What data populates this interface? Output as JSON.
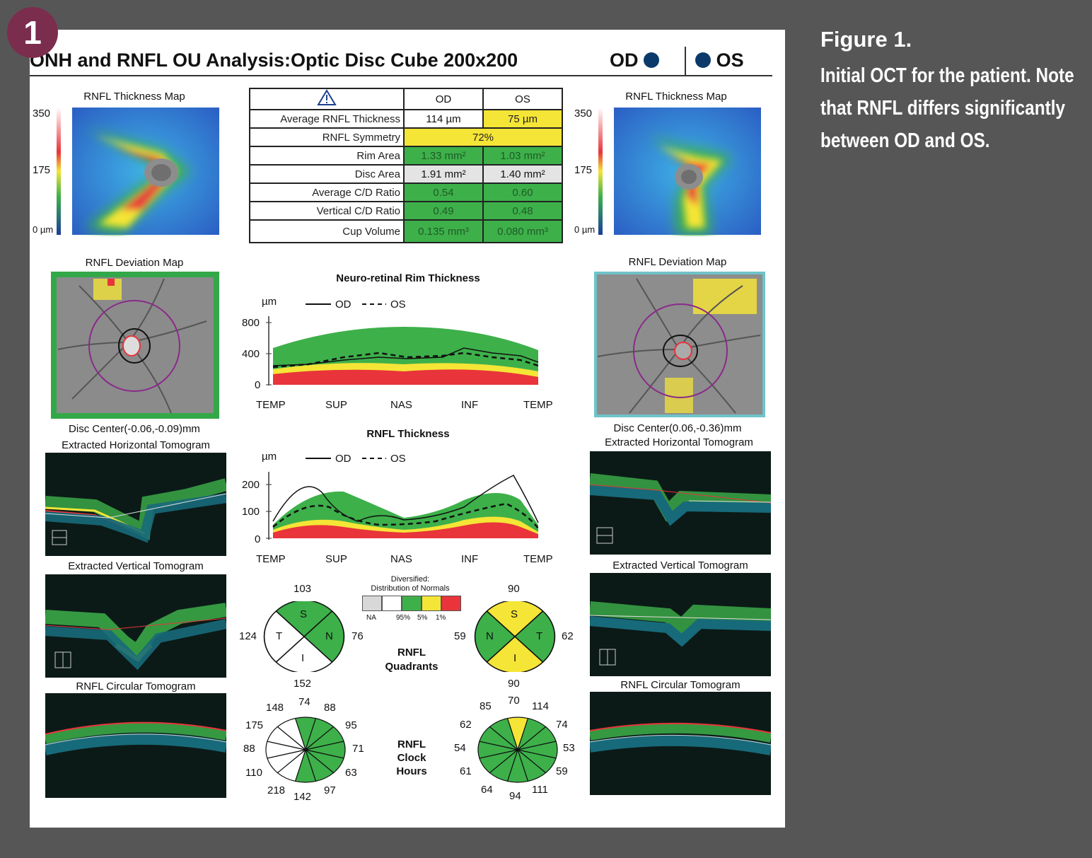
{
  "badge": "1",
  "caption": {
    "figure": "Figure 1.",
    "text": "Initial OCT for the patient. Note that RNFL differs significantly between OD and OS."
  },
  "report": {
    "title": "ONH and RNFL OU Analysis:Optic Disc Cube 200x200",
    "eye_od": "OD",
    "eye_os": "OS",
    "thickness_map": {
      "title": "RNFL Thickness Map",
      "scale_max": "350",
      "scale_mid": "175",
      "scale_min": "0 µm"
    },
    "deviation_map_title": "RNFL Deviation Map",
    "disc_center_od": "Disc Center(-0.06,-0.09)mm",
    "disc_center_os": "Disc Center(0.06,-0.36)mm",
    "h_tomo_title": "Extracted Horizontal Tomogram",
    "v_tomo_title": "Extracted Vertical Tomogram",
    "c_tomo_title": "RNFL Circular Tomogram",
    "params": {
      "warning_icon": "warning-triangle-icon",
      "col_od": "OD",
      "col_os": "OS",
      "rows": [
        {
          "label": "Average RNFL Thickness",
          "od": "114 µm",
          "os": "75 µm"
        },
        {
          "label": "RNFL Symmetry",
          "merged": "72%"
        },
        {
          "label": "Rim Area",
          "od": "1.33 mm²",
          "os": "1.03 mm²"
        },
        {
          "label": "Disc Area",
          "od": "1.91 mm²",
          "os": "1.40 mm²"
        },
        {
          "label": "Average C/D Ratio",
          "od": "0.54",
          "os": "0.60"
        },
        {
          "label": "Vertical C/D Ratio",
          "od": "0.49",
          "os": "0.48"
        },
        {
          "label": "Cup Volume",
          "od": "0.135 mm³",
          "os": "0.080 mm³"
        }
      ]
    },
    "rim_chart": {
      "title": "Neuro-retinal Rim Thickness",
      "unit": "µm",
      "legend_od": "OD",
      "legend_os": "OS",
      "yticks": [
        "800",
        "400",
        "0"
      ],
      "xticks": [
        "TEMP",
        "SUP",
        "NAS",
        "INF",
        "TEMP"
      ]
    },
    "rnfl_chart": {
      "title": "RNFL Thickness",
      "unit": "µm",
      "legend_od": "OD",
      "legend_os": "OS",
      "yticks": [
        "200",
        "100",
        "0"
      ],
      "xticks": [
        "TEMP",
        "SUP",
        "NAS",
        "INF",
        "TEMP"
      ]
    },
    "quadrants": {
      "title_line1": "RNFL",
      "title_line2": "Quadrants",
      "legend_title_line1": "Diversified:",
      "legend_title_line2": "Distribution of Normals",
      "legend_labels": [
        "NA",
        "95%",
        "5%",
        "1%"
      ],
      "od": {
        "top": "103",
        "left": "124",
        "right": "76",
        "bottom": "152",
        "S": "S",
        "T": "T",
        "N": "N",
        "I": "I"
      },
      "os": {
        "top": "90",
        "left": "59",
        "right": "62",
        "bottom": "90",
        "S": "S",
        "N": "N",
        "T": "T",
        "I": "I"
      }
    },
    "clock": {
      "title_line1": "RNFL",
      "title_line2": "Clock",
      "title_line3": "Hours",
      "od": [
        "74",
        "88",
        "95",
        "71",
        "63",
        "97",
        "142",
        "218",
        "110",
        "88",
        "175",
        "148"
      ],
      "os": [
        "70",
        "114",
        "74",
        "53",
        "59",
        "111",
        "94",
        "64",
        "61",
        "54",
        "62",
        "85"
      ]
    }
  },
  "colors": {
    "normal_green": "#3db04a",
    "borderline_yellow": "#f5e536",
    "outside_red": "#e8343a",
    "na_gray": "#d8d8d8"
  }
}
